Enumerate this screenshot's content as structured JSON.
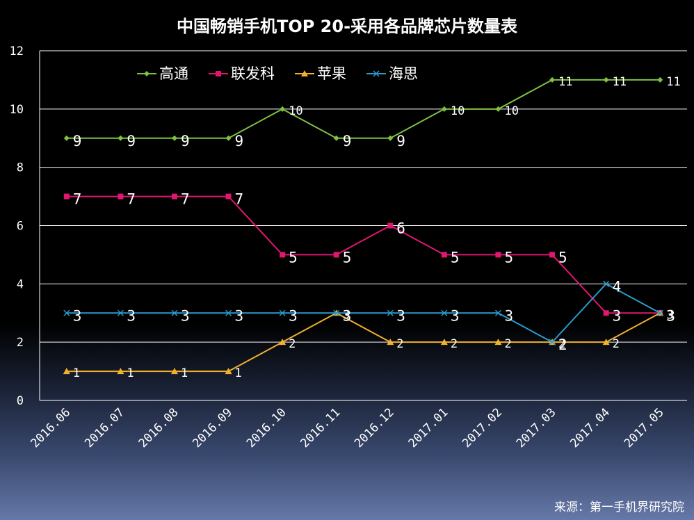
{
  "chart_data": {
    "type": "line",
    "title": "中国畅销手机TOP 20-采用各品牌芯片数量表",
    "categories": [
      "2016.06",
      "2016.07",
      "2016.08",
      "2016.09",
      "2016.10",
      "2016.11",
      "2016.12",
      "2017.01",
      "2017.02",
      "2017.03",
      "2017.04",
      "2017.05"
    ],
    "ylim": [
      0,
      12
    ],
    "yticks": [
      0,
      2,
      4,
      6,
      8,
      10,
      12
    ],
    "grid": true,
    "legend_position": "top-left",
    "series": [
      {
        "name": "高通",
        "color": "#7fc141",
        "marker": "diamond",
        "values": [
          9,
          9,
          9,
          9,
          10,
          9,
          9,
          10,
          10,
          11,
          11,
          11
        ]
      },
      {
        "name": "联发科",
        "color": "#e0176f",
        "marker": "square",
        "values": [
          7,
          7,
          7,
          7,
          5,
          5,
          6,
          5,
          5,
          5,
          3,
          3
        ]
      },
      {
        "name": "苹果",
        "color": "#f2b12b",
        "marker": "triangle",
        "values": [
          1,
          1,
          1,
          1,
          2,
          3,
          2,
          2,
          2,
          2,
          2,
          3
        ]
      },
      {
        "name": "海思",
        "color": "#2a9ccf",
        "marker": "x",
        "values": [
          3,
          3,
          3,
          3,
          3,
          3,
          3,
          3,
          3,
          2,
          4,
          3
        ]
      }
    ]
  },
  "source_text": "来源：第一手机界研究院"
}
